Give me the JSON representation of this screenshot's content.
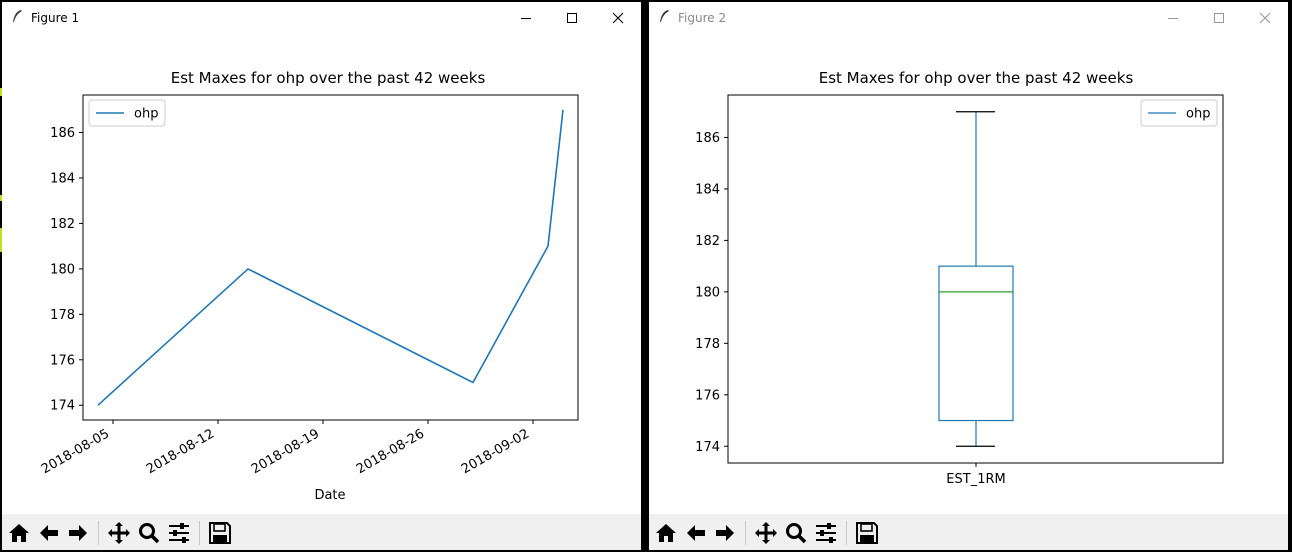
{
  "windows": [
    {
      "title": "Figure 1",
      "active": true
    },
    {
      "title": "Figure 2",
      "active": false
    }
  ],
  "colors": {
    "line": "#1f77b4",
    "median": "#2ca02c",
    "inactive_title": "#8a8a8a"
  },
  "toolbar": {
    "buttons": [
      "home-icon",
      "back-arrow-icon",
      "forward-arrow-icon",
      "pan-icon",
      "zoom-icon",
      "configure-subplots-icon",
      "save-icon"
    ]
  },
  "chart_data": [
    {
      "type": "line",
      "title": "Est Maxes for ohp over the past 42 weeks",
      "xlabel": "Date",
      "ylabel": "",
      "series": [
        {
          "name": "ohp",
          "x": [
            "2018-08-04",
            "2018-08-14",
            "2018-08-29",
            "2018-09-03",
            "2018-09-04"
          ],
          "values": [
            174,
            180,
            175,
            181,
            187
          ]
        }
      ],
      "x_ticks": [
        "2018-08-05",
        "2018-08-12",
        "2018-08-19",
        "2018-08-26",
        "2018-09-02"
      ],
      "y_ticks": [
        174,
        176,
        178,
        180,
        182,
        184,
        186
      ],
      "xlim": [
        "2018-08-03",
        "2018-09-05"
      ],
      "ylim": [
        173.35,
        187.65
      ],
      "legend": "upper left",
      "grid": false
    },
    {
      "type": "box",
      "title": "Est Maxes for ohp over the past 42 weeks",
      "categories": [
        "EST_1RM"
      ],
      "stats": {
        "min": 174,
        "q1": 175,
        "median": 180,
        "q3": 181,
        "max": 187
      },
      "legend_entries": [
        "ohp"
      ],
      "y_ticks": [
        174,
        176,
        178,
        180,
        182,
        184,
        186
      ],
      "ylim": [
        173.35,
        187.65
      ],
      "legend": "upper right",
      "grid": false
    }
  ]
}
